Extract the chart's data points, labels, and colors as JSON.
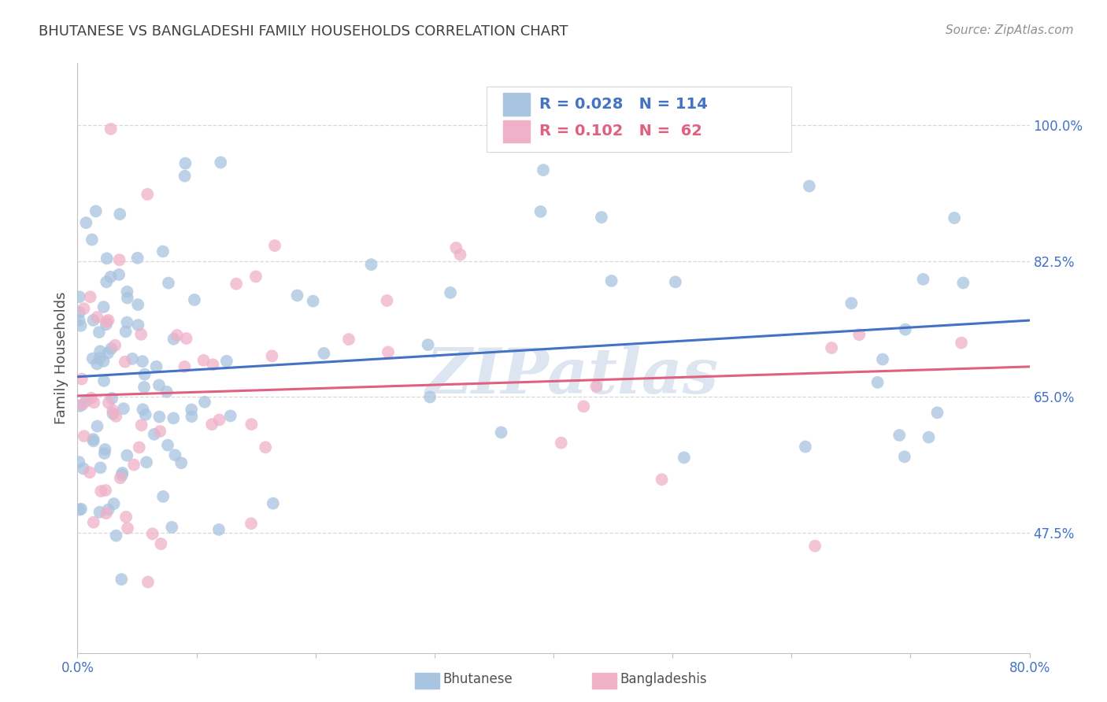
{
  "title": "BHUTANESE VS BANGLADESHI FAMILY HOUSEHOLDS CORRELATION CHART",
  "source": "Source: ZipAtlas.com",
  "ylabel": "Family Households",
  "ytick_labels": [
    "100.0%",
    "82.5%",
    "65.0%",
    "47.5%"
  ],
  "ytick_values": [
    1.0,
    0.825,
    0.65,
    0.475
  ],
  "xlim": [
    0.0,
    0.8
  ],
  "ylim": [
    0.32,
    1.08
  ],
  "legend_blue_color": "#a8c4e0",
  "legend_pink_color": "#f0b0c8",
  "line_blue_color": "#4472c4",
  "line_pink_color": "#e06080",
  "scatter_blue_color": "#a8c4e0",
  "scatter_pink_color": "#f0b0c8",
  "title_color": "#404040",
  "source_color": "#909090",
  "axis_label_color": "#505050",
  "tick_label_color": "#4472c4",
  "grid_color": "#d8d8d8",
  "watermark_color": "#dde6f0",
  "watermark_text": "ZIPatlas",
  "blue_R": 0.028,
  "blue_N": 114,
  "pink_R": 0.102,
  "pink_N": 62,
  "blue_legend_label": "Bhutanese",
  "pink_legend_label": "Bangladeshis"
}
